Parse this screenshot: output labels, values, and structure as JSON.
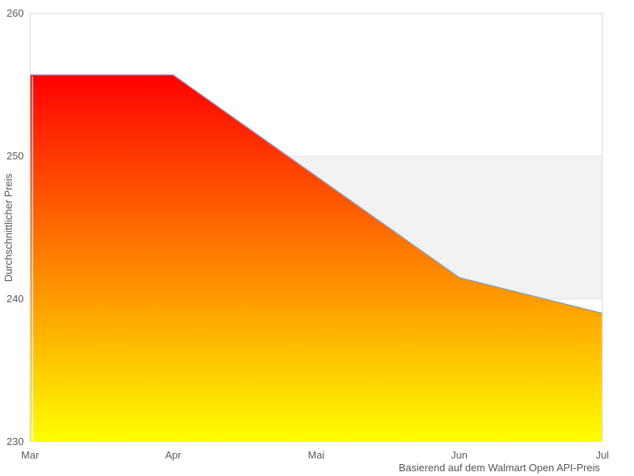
{
  "chart_data": {
    "type": "area",
    "categories": [
      "Mar",
      "Apr",
      "Mai",
      "Jun",
      "Jul"
    ],
    "values": [
      255.7,
      255.7,
      248.6,
      241.5,
      239.0
    ],
    "title": "",
    "xlabel": "",
    "ylabel": "Durchschnittlicher Preis",
    "caption": "Basierend auf dem Walmart Open API-Preis",
    "ylim": [
      230,
      260
    ],
    "yticks": [
      260,
      250,
      240,
      230
    ],
    "legend_position": "none",
    "grid": "horizontal band only",
    "plot_band": {
      "from": 240,
      "to": 250,
      "color": "#f2f2f2",
      "edge_color": "#e6e6e6"
    },
    "colors": {
      "line": "#74a5d9",
      "area_gradient_top": "#ff0000",
      "area_gradient_bottom": "#ffff00",
      "plot_border": "#d8d8d8"
    }
  }
}
